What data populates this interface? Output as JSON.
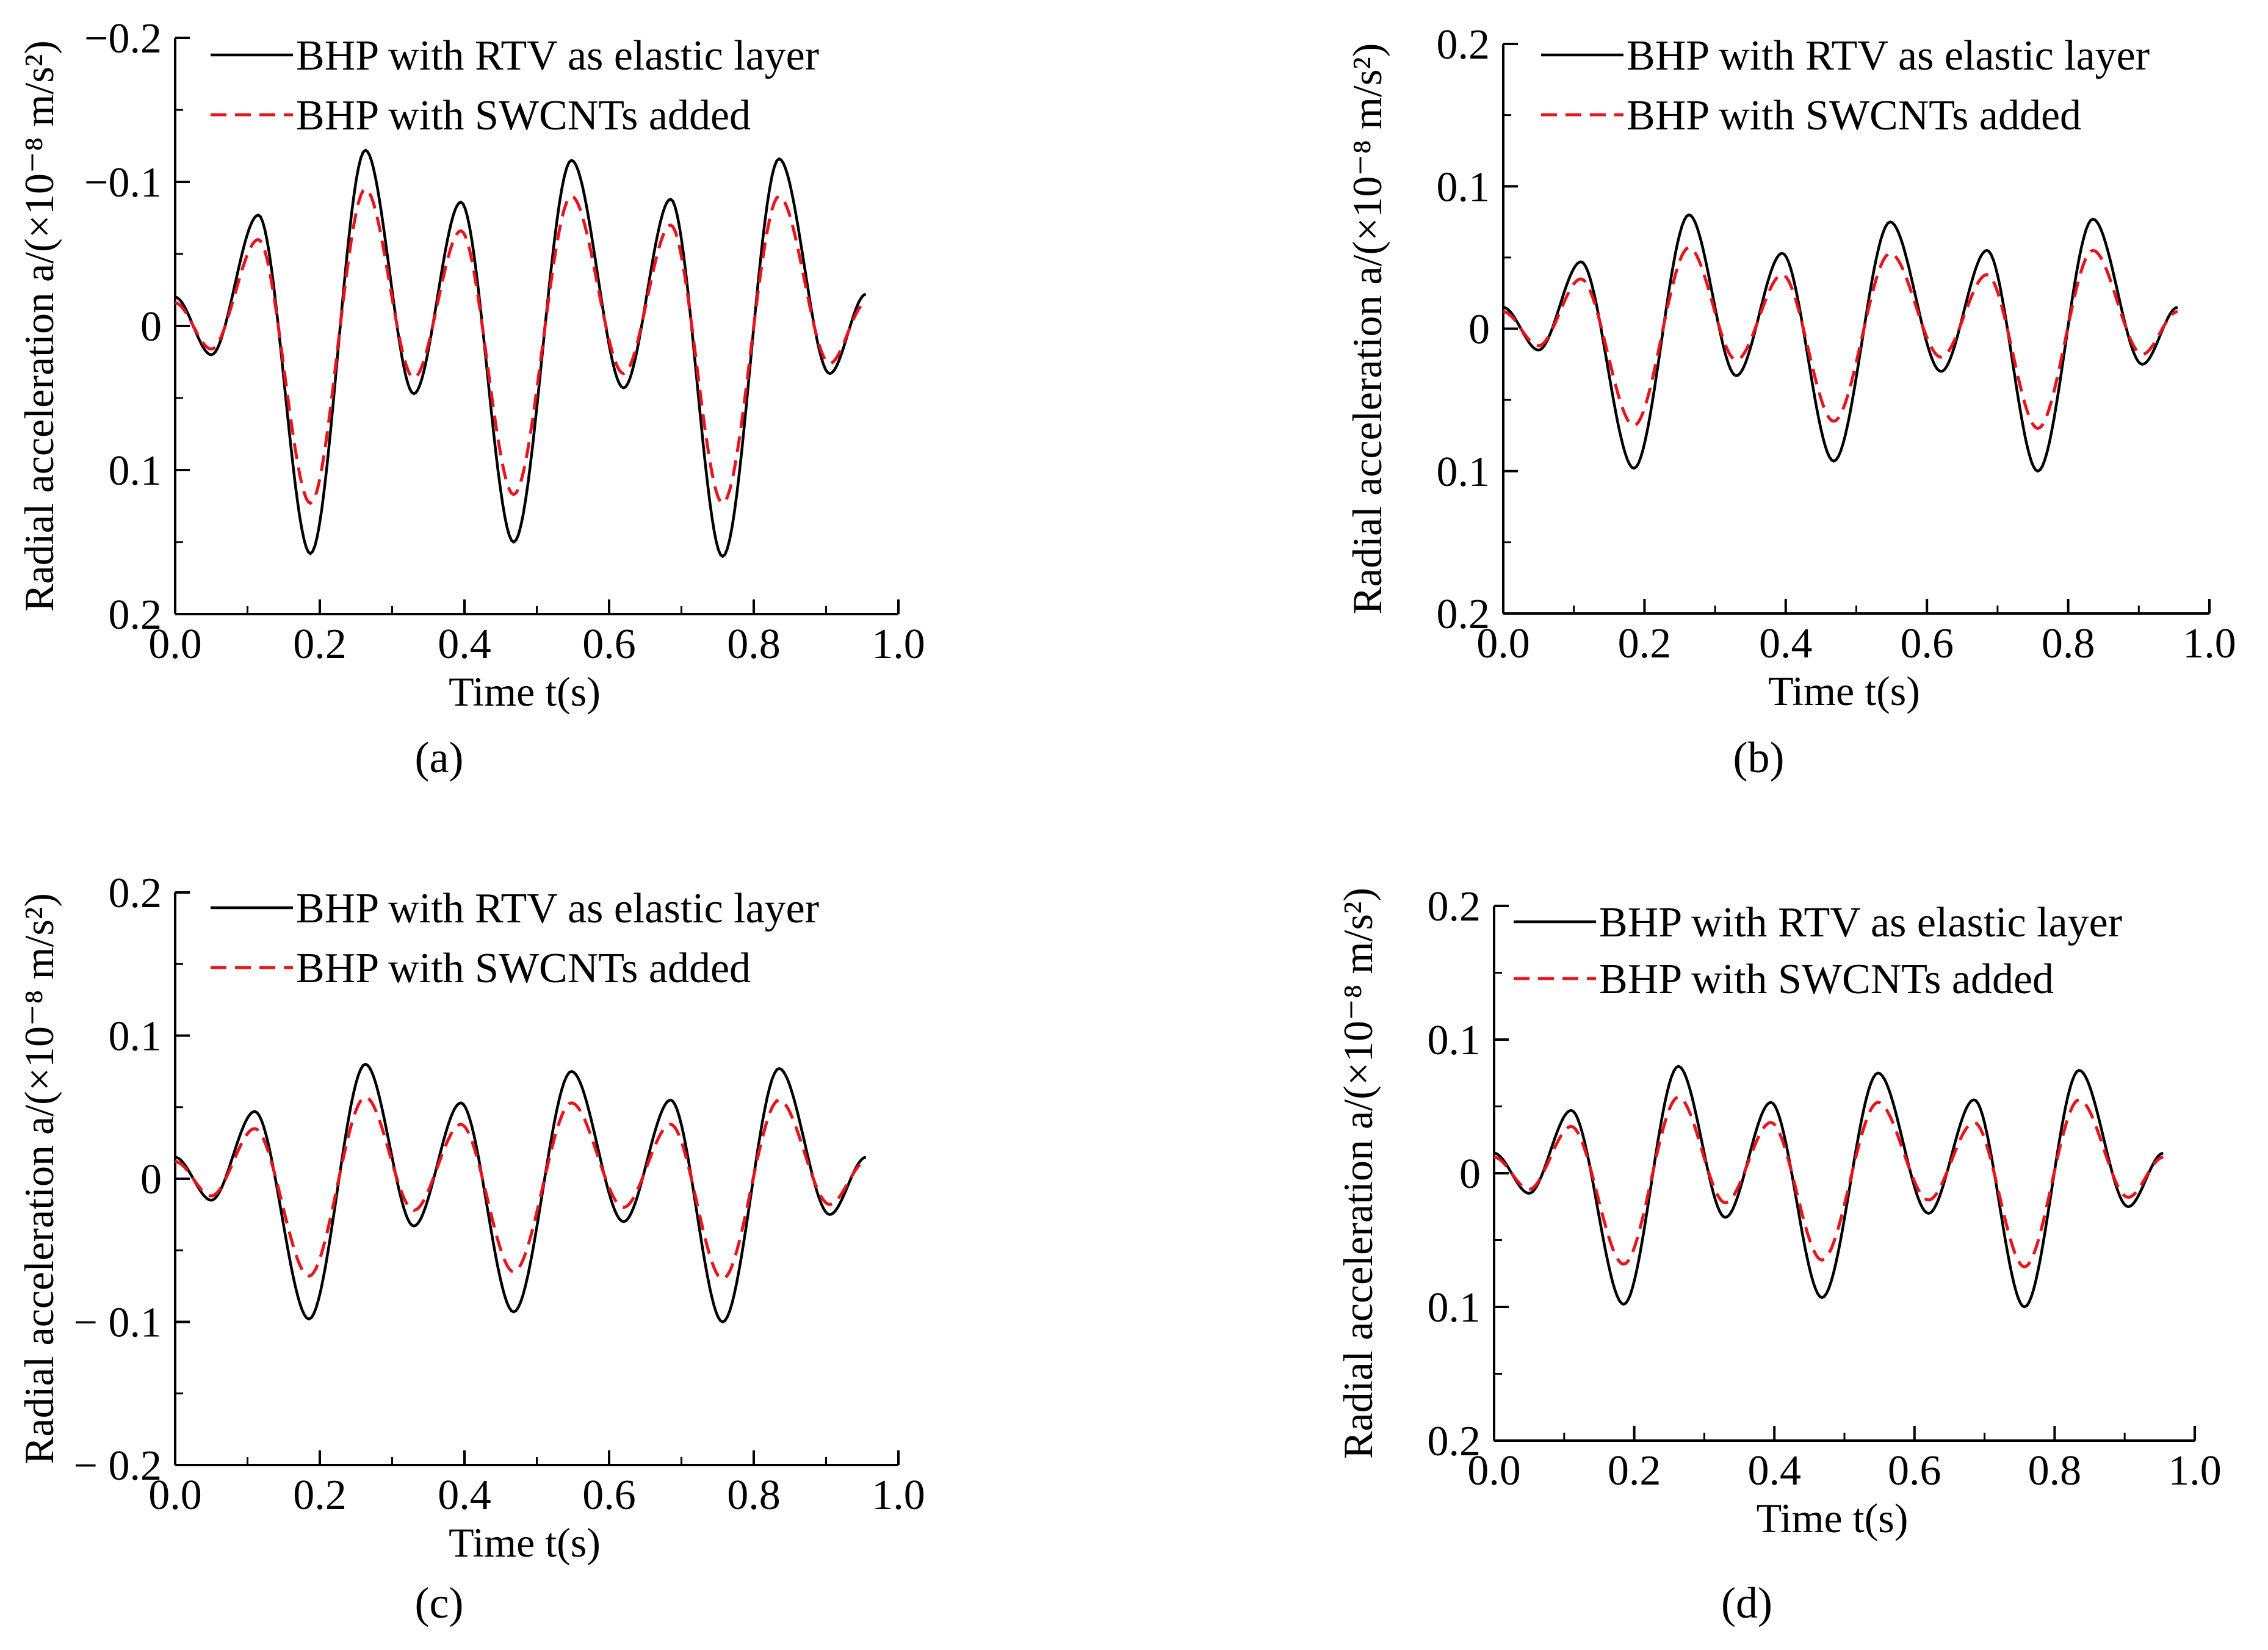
{
  "chart_data": [
    {
      "type": "line",
      "panel_label": "(a)",
      "xlabel": "Time t(s)",
      "ylabel": "Radial acceleration a/(×10⁻⁸ m/s²)",
      "xlim": [
        0,
        1.0
      ],
      "ylim": [
        -0.2,
        0.2
      ],
      "xticks": [
        "0.0",
        "0.2",
        "0.4",
        "0.6",
        "0.8",
        "1.0"
      ],
      "yticks": [
        "−0.2",
        "−0.1",
        "0",
        "0.1",
        "0.2"
      ],
      "legend_position": "top",
      "series": [
        {
          "name": "BHP with RTV as elastic layer",
          "color": "#000000",
          "style": "solid",
          "x": [
            0.0,
            0.05,
            0.115,
            0.187,
            0.263,
            0.33,
            0.395,
            0.468,
            0.548,
            0.62,
            0.685,
            0.757,
            0.835,
            0.905,
            0.955
          ],
          "y": [
            0.02,
            -0.02,
            0.077,
            -0.158,
            0.122,
            -0.047,
            0.086,
            -0.15,
            0.115,
            -0.043,
            0.088,
            -0.16,
            0.116,
            -0.033,
            0.022
          ]
        },
        {
          "name": "BHP with SWCNTs added",
          "color": "#e8141c",
          "style": "dashed",
          "x": [
            0.0,
            0.05,
            0.115,
            0.187,
            0.263,
            0.33,
            0.395,
            0.468,
            0.548,
            0.62,
            0.685,
            0.757,
            0.835,
            0.905,
            0.955
          ],
          "y": [
            0.016,
            -0.016,
            0.06,
            -0.123,
            0.095,
            -0.036,
            0.066,
            -0.117,
            0.09,
            -0.033,
            0.07,
            -0.123,
            0.09,
            -0.026,
            0.016
          ]
        }
      ]
    },
    {
      "type": "line",
      "panel_label": "(b)",
      "xlabel": "Time t(s)",
      "ylabel": "Radial acceleration a/(×10⁻⁸ m/s²)",
      "xlim": [
        0,
        1.0
      ],
      "ylim": [
        -0.2,
        0.2
      ],
      "xticks": [
        "0.0",
        "0.2",
        "0.4",
        "0.6",
        "0.8",
        "1.0"
      ],
      "yticks": [
        "0.2",
        "0.1",
        "0",
        "0.1",
        "0.2"
      ],
      "legend_position": "top",
      "series": [
        {
          "name": "BHP with RTV as elastic layer",
          "color": "#000000",
          "style": "solid",
          "x": [
            0.0,
            0.05,
            0.11,
            0.185,
            0.263,
            0.33,
            0.395,
            0.468,
            0.548,
            0.62,
            0.685,
            0.757,
            0.835,
            0.905,
            0.955
          ],
          "y": [
            0.015,
            -0.015,
            0.047,
            -0.098,
            0.08,
            -0.033,
            0.053,
            -0.093,
            0.075,
            -0.03,
            0.055,
            -0.1,
            0.077,
            -0.025,
            0.015
          ]
        },
        {
          "name": "BHP with SWCNTs added",
          "color": "#e8141c",
          "style": "dashed",
          "x": [
            0.0,
            0.05,
            0.11,
            0.185,
            0.263,
            0.33,
            0.395,
            0.468,
            0.548,
            0.62,
            0.685,
            0.757,
            0.835,
            0.905,
            0.955
          ],
          "y": [
            0.012,
            -0.012,
            0.035,
            -0.068,
            0.057,
            -0.022,
            0.038,
            -0.065,
            0.053,
            -0.02,
            0.038,
            -0.07,
            0.055,
            -0.018,
            0.012
          ]
        }
      ]
    },
    {
      "type": "line",
      "panel_label": "(c)",
      "xlabel": "Time t(s)",
      "ylabel": "Radial acceleration a/(×10⁻⁸ m/s²)",
      "xlim": [
        0,
        1.0
      ],
      "ylim": [
        -0.2,
        0.2
      ],
      "xticks": [
        "0.0",
        "0.2",
        "0.4",
        "0.6",
        "0.8",
        "1.0"
      ],
      "yticks": [
        "0.2",
        "0.1",
        "0",
        "− 0.1",
        "− 0.2"
      ],
      "legend_position": "top",
      "series": [
        {
          "name": "BHP with RTV as elastic layer",
          "color": "#000000",
          "style": "solid",
          "x": [
            0.0,
            0.05,
            0.11,
            0.185,
            0.263,
            0.33,
            0.395,
            0.468,
            0.548,
            0.62,
            0.685,
            0.757,
            0.835,
            0.905,
            0.955
          ],
          "y": [
            0.015,
            -0.015,
            0.047,
            -0.098,
            0.08,
            -0.033,
            0.053,
            -0.093,
            0.075,
            -0.03,
            0.055,
            -0.1,
            0.077,
            -0.025,
            0.015
          ]
        },
        {
          "name": "BHP with SWCNTs added",
          "color": "#e8141c",
          "style": "dashed",
          "x": [
            0.0,
            0.05,
            0.11,
            0.185,
            0.263,
            0.33,
            0.395,
            0.468,
            0.548,
            0.62,
            0.685,
            0.757,
            0.835,
            0.905,
            0.955
          ],
          "y": [
            0.012,
            -0.012,
            0.035,
            -0.068,
            0.057,
            -0.022,
            0.038,
            -0.065,
            0.053,
            -0.02,
            0.038,
            -0.07,
            0.055,
            -0.018,
            0.012
          ]
        }
      ]
    },
    {
      "type": "line",
      "panel_label": "(d)",
      "xlabel": "Time t(s)",
      "ylabel": "Radial acceleration a/(×10⁻⁸ m/s²)",
      "xlim": [
        0,
        1.0
      ],
      "ylim": [
        -0.2,
        0.2
      ],
      "xticks": [
        "0.0",
        "0.2",
        "0.4",
        "0.6",
        "0.8",
        "1.0"
      ],
      "yticks": [
        "0.2",
        "0.1",
        "0",
        "0.1",
        "0.2"
      ],
      "legend_position": "top",
      "series": [
        {
          "name": "BHP with RTV as elastic layer",
          "color": "#000000",
          "style": "solid",
          "x": [
            0.0,
            0.05,
            0.11,
            0.185,
            0.263,
            0.33,
            0.395,
            0.468,
            0.548,
            0.62,
            0.685,
            0.757,
            0.835,
            0.905,
            0.955
          ],
          "y": [
            0.015,
            -0.015,
            0.047,
            -0.098,
            0.08,
            -0.033,
            0.053,
            -0.093,
            0.075,
            -0.03,
            0.055,
            -0.1,
            0.077,
            -0.025,
            0.015
          ]
        },
        {
          "name": "BHP with SWCNTs added",
          "color": "#e8141c",
          "style": "dashed",
          "x": [
            0.0,
            0.05,
            0.11,
            0.185,
            0.263,
            0.33,
            0.395,
            0.468,
            0.548,
            0.62,
            0.685,
            0.757,
            0.835,
            0.905,
            0.955
          ],
          "y": [
            0.012,
            -0.012,
            0.035,
            -0.068,
            0.057,
            -0.022,
            0.038,
            -0.065,
            0.053,
            -0.02,
            0.038,
            -0.07,
            0.055,
            -0.018,
            0.012
          ]
        }
      ]
    }
  ]
}
